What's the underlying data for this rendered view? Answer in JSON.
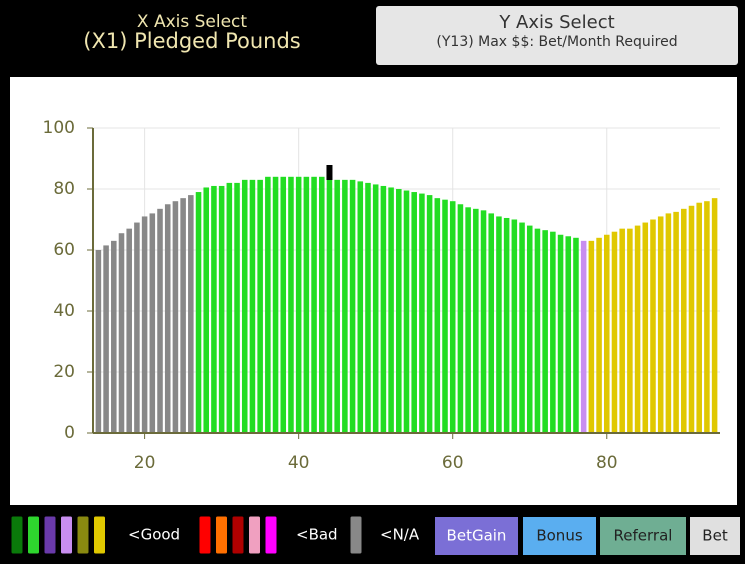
{
  "header": {
    "x_select": {
      "title": "X Axis Select",
      "value": "(X1) Pledged Pounds"
    },
    "y_select": {
      "title": "Y Axis Select",
      "value": "(Y13) Max $$: Bet/Month Required"
    }
  },
  "chart_data": {
    "type": "bar",
    "xlim": [
      13.3,
      94.7
    ],
    "xticks": [
      20,
      40,
      60,
      80
    ],
    "ylim": [
      0,
      100
    ],
    "yticks": [
      0,
      20,
      40,
      60,
      80,
      100
    ],
    "grid": true,
    "cursor_x": 44,
    "series": [
      {
        "color": "#888888",
        "x": [
          14,
          15,
          16,
          17,
          18,
          19,
          20,
          21,
          22,
          23,
          24,
          25,
          26
        ],
        "values": [
          60,
          61.5,
          63,
          65.5,
          67,
          69,
          71,
          72,
          73.5,
          75,
          76,
          77,
          78
        ]
      },
      {
        "color": "#22dd22",
        "x": [
          27,
          28,
          29,
          30,
          31,
          32,
          33,
          34,
          35,
          36,
          37,
          38,
          39,
          40,
          41,
          42,
          43,
          44,
          45,
          46,
          47,
          48,
          49,
          50,
          51,
          52,
          53,
          54,
          55,
          56,
          57,
          58,
          59,
          60,
          61,
          62,
          63,
          64,
          65,
          66,
          67,
          68,
          69,
          70,
          71,
          72,
          73,
          74,
          75,
          76
        ],
        "values": [
          79,
          80.5,
          81,
          81,
          82,
          82,
          83,
          83,
          83,
          84,
          84,
          84,
          84,
          84,
          84,
          84,
          84,
          84,
          83,
          83,
          83,
          82.5,
          82,
          81.5,
          81,
          80.5,
          80,
          79.5,
          79,
          78.5,
          78,
          77,
          76.5,
          76,
          75,
          74,
          73.5,
          73,
          72,
          71,
          70.5,
          70,
          69,
          68,
          67,
          66.5,
          66,
          65,
          64.5,
          64
        ]
      },
      {
        "color": "#c88ef0",
        "x": [
          77
        ],
        "values": [
          63
        ]
      },
      {
        "color": "#e0c800",
        "x": [
          78,
          79,
          80,
          81,
          82,
          83,
          84,
          85,
          86,
          87,
          88,
          89,
          90,
          91,
          92,
          93,
          94
        ],
        "values": [
          63,
          64,
          65,
          66,
          67,
          67,
          68,
          69,
          70,
          71,
          72,
          72.5,
          73.5,
          74.5,
          75.5,
          76,
          77
        ]
      }
    ]
  },
  "footer": {
    "good_colors": [
      "#0a7a0a",
      "#2ed62e",
      "#6a3aaa",
      "#c88ef0",
      "#8a8a10",
      "#e0c800"
    ],
    "good_label": "<Good",
    "bad_colors": [
      "#ff0000",
      "#ff7000",
      "#b00000",
      "#f0a0c0",
      "#ff00ff"
    ],
    "bad_label": "<Bad",
    "na_colors": [
      "#888888"
    ],
    "na_label": "<N/A",
    "buttons": [
      "BetGain",
      "Bonus",
      "Referral",
      "Bet"
    ]
  }
}
